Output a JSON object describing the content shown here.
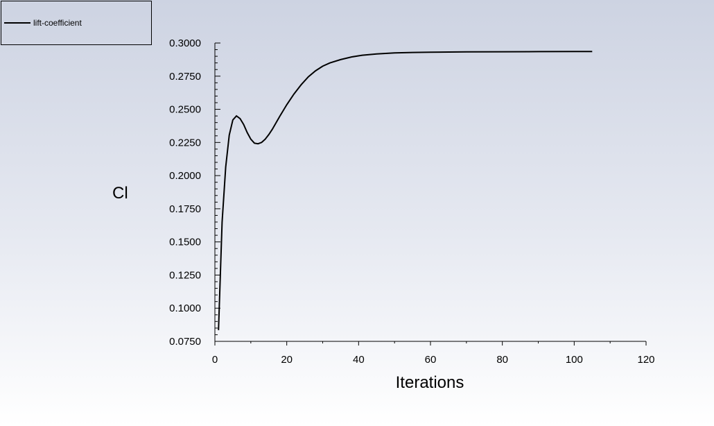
{
  "chart_data": {
    "type": "line",
    "title": "",
    "xlabel": "Iterations",
    "ylabel": "Cl",
    "xlim": [
      0,
      120
    ],
    "ylim": [
      0.075,
      0.3
    ],
    "x_ticks": [
      "0",
      "20",
      "40",
      "60",
      "80",
      "100",
      "120"
    ],
    "y_ticks": [
      "0.0750",
      "0.1000",
      "0.1250",
      "0.1500",
      "0.1750",
      "0.2000",
      "0.2250",
      "0.2500",
      "0.2750",
      "0.3000"
    ],
    "legend_position": "top-left",
    "grid": false,
    "series": [
      {
        "name": "lift-coefficient",
        "color": "#000000",
        "x": [
          1,
          2,
          3,
          4,
          5,
          6,
          7,
          8,
          9,
          10,
          11,
          12,
          13,
          14,
          15,
          16,
          18,
          20,
          22,
          24,
          26,
          28,
          30,
          32,
          35,
          38,
          41,
          45,
          50,
          55,
          60,
          70,
          80,
          90,
          100,
          105
        ],
        "y": [
          0.0835,
          0.165,
          0.2065,
          0.2305,
          0.242,
          0.245,
          0.243,
          0.2385,
          0.2325,
          0.2275,
          0.2245,
          0.224,
          0.225,
          0.2275,
          0.231,
          0.235,
          0.2445,
          0.2535,
          0.2615,
          0.2685,
          0.2745,
          0.279,
          0.2825,
          0.285,
          0.2875,
          0.2895,
          0.2908,
          0.2918,
          0.2925,
          0.2929,
          0.2931,
          0.2933,
          0.2934,
          0.2935,
          0.2936,
          0.2936
        ]
      }
    ]
  }
}
